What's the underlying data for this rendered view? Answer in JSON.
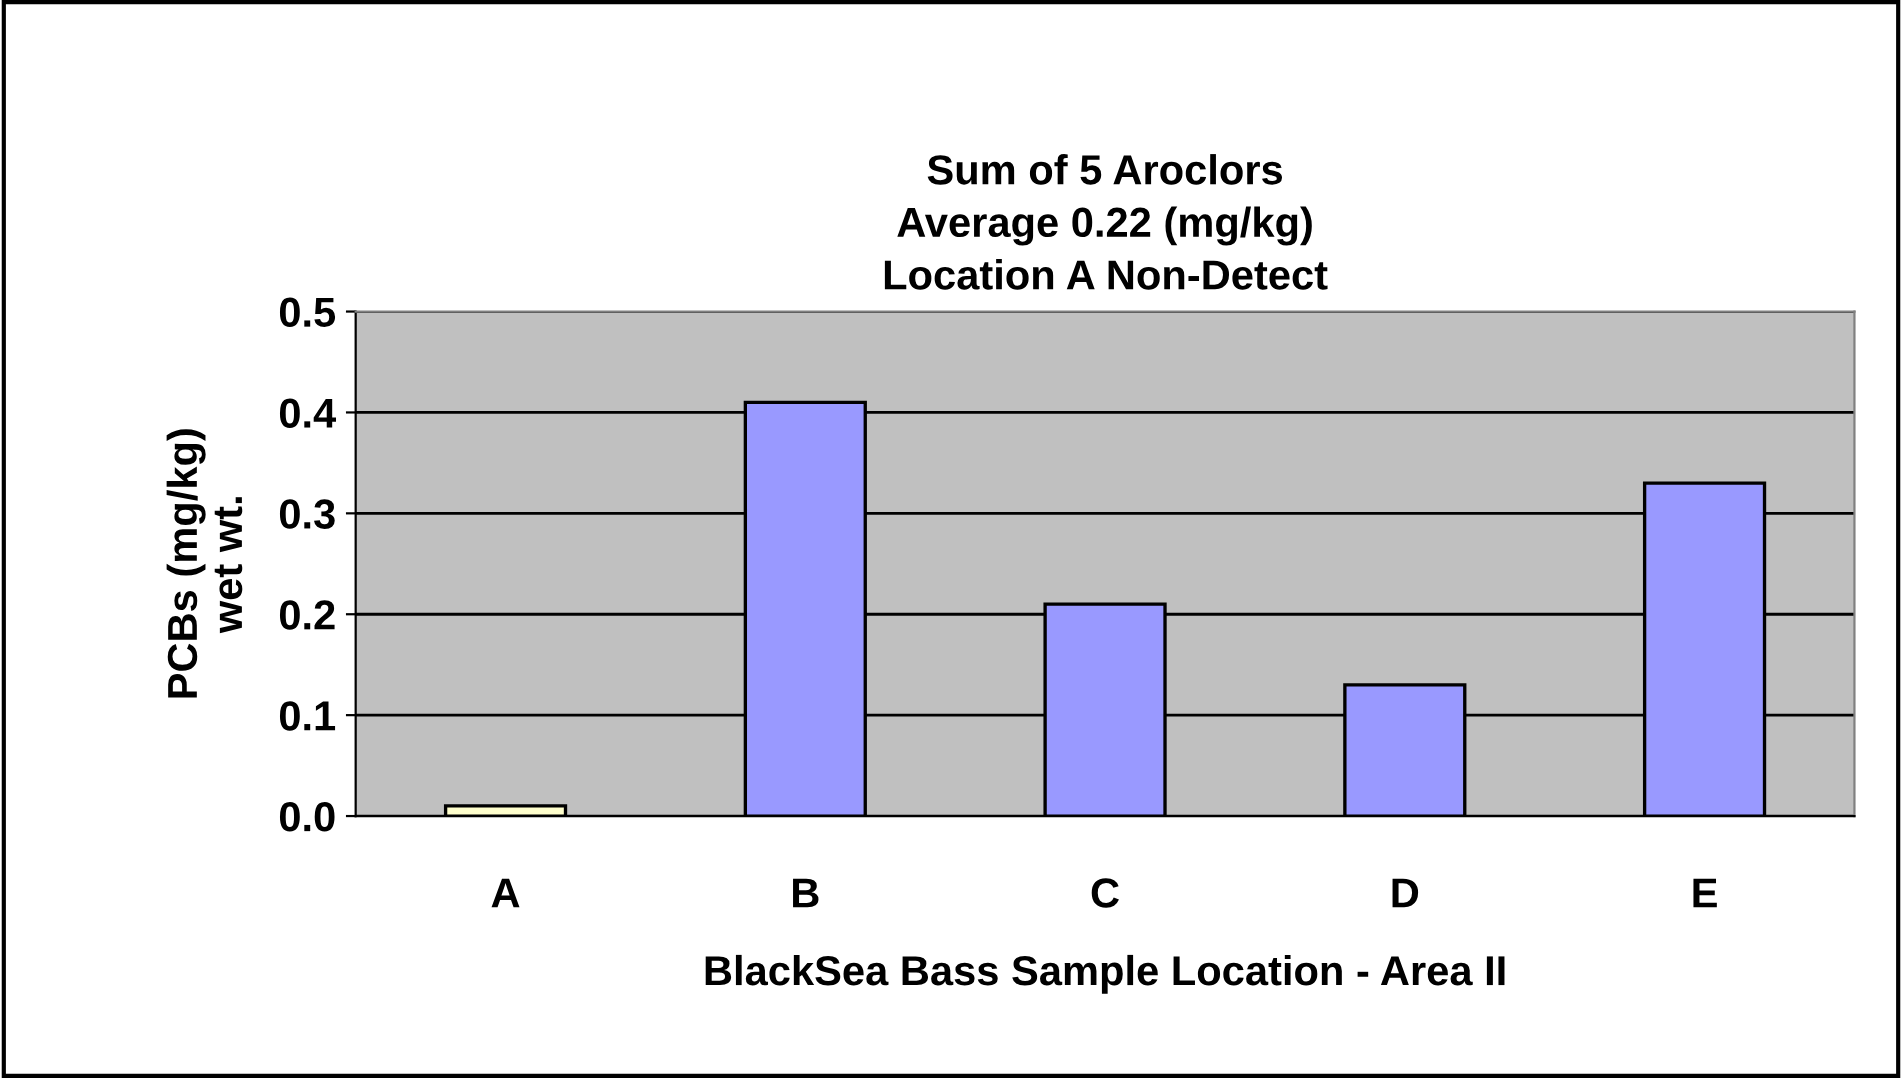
{
  "chart_data": {
    "type": "bar",
    "title": "Sum of 5 Aroclors\nAverage 0.22 (mg/kg)\nLocation A Non-Detect",
    "xlabel": "BlackSea Bass Sample Location - Area II",
    "ylabel": "PCBs (mg/kg)\nwet wt.",
    "categories": [
      "A",
      "B",
      "C",
      "D",
      "E"
    ],
    "values": [
      0.01,
      0.41,
      0.21,
      0.13,
      0.33
    ],
    "colors": [
      "#ffffcc",
      "#9999ff",
      "#9999ff",
      "#9999ff",
      "#9999ff"
    ],
    "ylim": [
      0,
      0.5
    ],
    "yticks": [
      {
        "value": 0,
        "label": "0.0"
      },
      0.1,
      0.2,
      0.3,
      0.4,
      0.5
    ],
    "grid": "y",
    "legend": false
  }
}
